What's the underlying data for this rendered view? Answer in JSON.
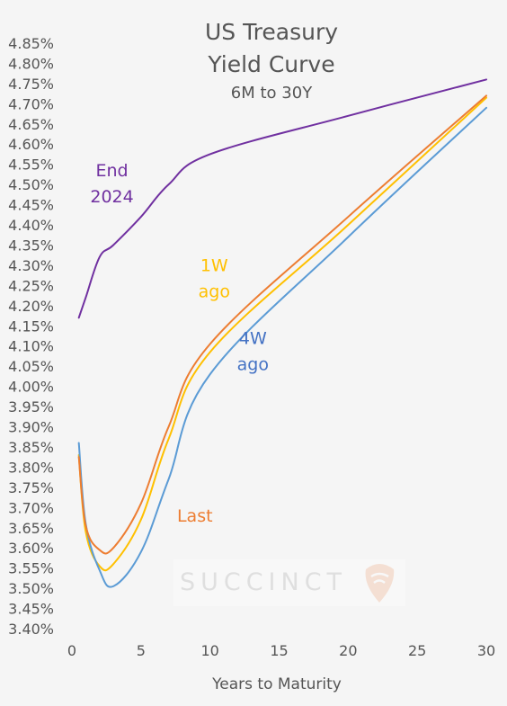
{
  "chart_data": {
    "type": "line",
    "title": [
      "US Treasury",
      "Yield Curve"
    ],
    "subtitle": "6M to 30Y",
    "xlabel": "Years to Maturity",
    "ylabel": "",
    "xlim": [
      -0.5,
      31.5
    ],
    "ylim": [
      3.4,
      4.85
    ],
    "x_ticks": [
      "0",
      "5",
      "10",
      "15",
      "20",
      "25",
      "30"
    ],
    "x_tick_values": [
      0,
      5,
      10,
      15,
      20,
      25,
      30
    ],
    "y_ticks": [
      "3.40%",
      "3.45%",
      "3.50%",
      "3.55%",
      "3.60%",
      "3.65%",
      "3.70%",
      "3.75%",
      "3.80%",
      "3.85%",
      "3.90%",
      "3.95%",
      "4.00%",
      "4.05%",
      "4.10%",
      "4.15%",
      "4.20%",
      "4.25%",
      "4.30%",
      "4.35%",
      "4.40%",
      "4.45%",
      "4.50%",
      "4.55%",
      "4.60%",
      "4.65%",
      "4.70%",
      "4.75%",
      "4.80%",
      "4.85%"
    ],
    "y_tick_values": [
      3.4,
      3.45,
      3.5,
      3.55,
      3.6,
      3.65,
      3.7,
      3.75,
      3.8,
      3.85,
      3.9,
      3.95,
      4.0,
      4.05,
      4.1,
      4.15,
      4.2,
      4.25,
      4.3,
      4.35,
      4.4,
      4.45,
      4.5,
      4.55,
      4.6,
      4.65,
      4.7,
      4.75,
      4.8,
      4.85
    ],
    "grid": false,
    "legend": "none",
    "series": [
      {
        "name": "End 2024",
        "label_lines": [
          "End",
          "2024"
        ],
        "color": "#7030a0",
        "points": [
          [
            0.5,
            4.17
          ],
          [
            1,
            4.22
          ],
          [
            2,
            4.32
          ],
          [
            3,
            4.35
          ],
          [
            5,
            4.42
          ],
          [
            7,
            4.5
          ],
          [
            10,
            4.575
          ],
          [
            20,
            4.67
          ],
          [
            30,
            4.76
          ]
        ]
      },
      {
        "name": "1W ago",
        "label_lines": [
          "1W",
          "ago"
        ],
        "color": "#ffc000",
        "points": [
          [
            0.5,
            3.83
          ],
          [
            1,
            3.64
          ],
          [
            2,
            3.555
          ],
          [
            3,
            3.56
          ],
          [
            5,
            3.67
          ],
          [
            7,
            3.87
          ],
          [
            10,
            4.085
          ],
          [
            20,
            4.4
          ],
          [
            30,
            4.715
          ]
        ]
      },
      {
        "name": "4W ago",
        "label_lines": [
          "4W",
          "ago"
        ],
        "color": "#5b9bd5",
        "label_color": "#4472c4",
        "points": [
          [
            0.5,
            3.86
          ],
          [
            1,
            3.66
          ],
          [
            2,
            3.545
          ],
          [
            3,
            3.505
          ],
          [
            5,
            3.59
          ],
          [
            7,
            3.77
          ],
          [
            10,
            4.03
          ],
          [
            20,
            4.37
          ],
          [
            30,
            4.69
          ]
        ]
      },
      {
        "name": "Last",
        "label_lines": [
          "Last"
        ],
        "color": "#ed7d31",
        "points": [
          [
            0.5,
            3.825
          ],
          [
            1,
            3.655
          ],
          [
            2,
            3.595
          ],
          [
            3,
            3.6
          ],
          [
            5,
            3.71
          ],
          [
            7,
            3.9
          ],
          [
            10,
            4.105
          ],
          [
            20,
            4.42
          ],
          [
            30,
            4.72
          ]
        ]
      }
    ],
    "watermark": "SUCCINCT"
  }
}
